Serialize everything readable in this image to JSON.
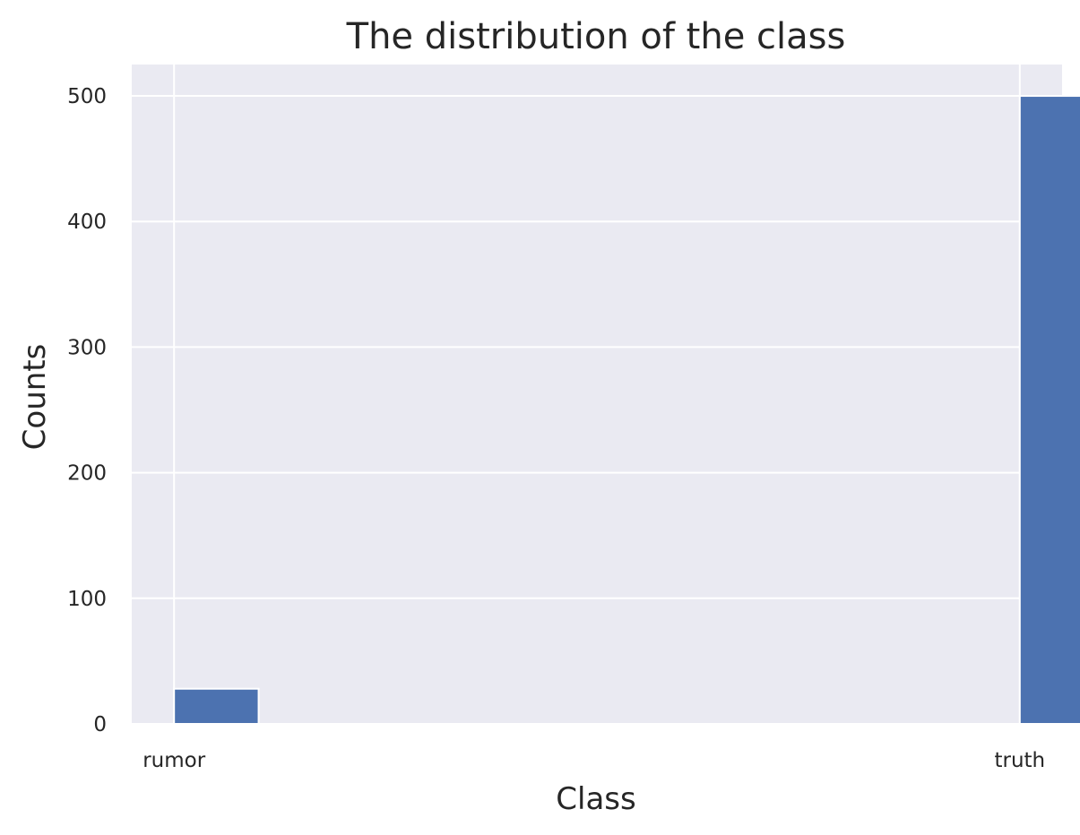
{
  "chart_data": {
    "type": "bar",
    "title": "The distribution of the class",
    "xlabel": "Class",
    "ylabel": "Counts",
    "categories": [
      "rumor",
      "truth"
    ],
    "values": [
      28,
      500
    ],
    "ylim": [
      0,
      525
    ],
    "yticks": [
      0,
      100,
      200,
      300,
      400,
      500
    ],
    "xlim": [
      -0.05,
      1.05
    ],
    "bar_width": 0.1,
    "grid": true,
    "legend": "none",
    "colors": {
      "bar": "#4c72b0",
      "plot_background": "#eaeaf2",
      "grid": "#ffffff",
      "text": "#262626"
    }
  }
}
